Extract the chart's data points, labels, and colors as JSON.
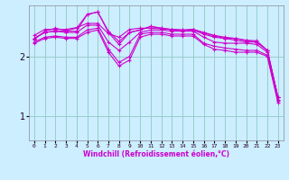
{
  "xlabel": "Windchill (Refroidissement éolien,°C)",
  "bg_color": "#cceeff",
  "grid_color": "#99cccc",
  "line_color": "#cc00cc",
  "xlim": [
    -0.5,
    23.5
  ],
  "ylim": [
    0.6,
    2.85
  ],
  "yticks": [
    1,
    2
  ],
  "xticks": [
    0,
    1,
    2,
    3,
    4,
    5,
    6,
    7,
    8,
    9,
    10,
    11,
    12,
    13,
    14,
    15,
    16,
    17,
    18,
    19,
    20,
    21,
    22,
    23
  ],
  "series": [
    {
      "x": [
        0,
        1,
        2,
        3,
        4,
        5,
        6,
        7,
        8,
        9,
        10,
        11,
        12,
        13,
        14,
        15,
        16,
        17,
        18,
        19,
        20,
        21,
        22,
        23
      ],
      "y": [
        2.35,
        2.45,
        2.45,
        2.45,
        2.48,
        2.55,
        2.55,
        2.38,
        2.32,
        2.45,
        2.47,
        2.47,
        2.46,
        2.45,
        2.44,
        2.44,
        2.37,
        2.32,
        2.3,
        2.27,
        2.24,
        2.24,
        2.1,
        1.32
      ]
    },
    {
      "x": [
        0,
        1,
        2,
        3,
        4,
        5,
        6,
        7,
        8,
        9,
        10,
        11,
        12,
        13,
        14,
        15,
        16,
        17,
        18,
        19,
        20,
        21,
        22,
        23
      ],
      "y": [
        2.28,
        2.42,
        2.47,
        2.43,
        2.47,
        2.7,
        2.74,
        2.42,
        2.25,
        2.4,
        2.44,
        2.5,
        2.47,
        2.45,
        2.44,
        2.45,
        2.4,
        2.35,
        2.32,
        2.3,
        2.27,
        2.26,
        2.1,
        1.32
      ]
    },
    {
      "x": [
        0,
        1,
        2,
        3,
        4,
        5,
        6,
        7,
        8,
        9,
        10,
        11,
        12,
        13,
        14,
        15,
        16,
        17,
        18,
        19,
        20,
        21,
        22,
        23
      ],
      "y": [
        2.3,
        2.4,
        2.42,
        2.42,
        2.42,
        2.7,
        2.74,
        2.4,
        2.2,
        2.4,
        2.44,
        2.5,
        2.47,
        2.44,
        2.43,
        2.45,
        2.39,
        2.34,
        2.3,
        2.3,
        2.26,
        2.24,
        2.1,
        1.32
      ]
    },
    {
      "x": [
        0,
        1,
        2,
        3,
        4,
        5,
        6,
        7,
        8,
        9,
        10,
        11,
        12,
        13,
        14,
        15,
        16,
        17,
        18,
        19,
        20,
        21,
        22,
        23
      ],
      "y": [
        2.3,
        2.4,
        2.42,
        2.4,
        2.4,
        2.52,
        2.52,
        2.24,
        2.1,
        2.24,
        2.4,
        2.44,
        2.44,
        2.42,
        2.42,
        2.42,
        2.32,
        2.24,
        2.22,
        2.22,
        2.22,
        2.2,
        2.07,
        1.28
      ]
    },
    {
      "x": [
        0,
        1,
        2,
        3,
        4,
        5,
        6,
        7,
        8,
        9,
        10,
        11,
        12,
        13,
        14,
        15,
        16,
        17,
        18,
        19,
        20,
        21,
        22,
        23
      ],
      "y": [
        2.24,
        2.32,
        2.34,
        2.32,
        2.32,
        2.44,
        2.47,
        2.12,
        1.9,
        2.0,
        2.37,
        2.4,
        2.4,
        2.37,
        2.37,
        2.37,
        2.22,
        2.17,
        2.14,
        2.12,
        2.1,
        2.1,
        2.02,
        1.26
      ]
    },
    {
      "x": [
        0,
        1,
        2,
        3,
        4,
        5,
        6,
        7,
        8,
        9,
        10,
        11,
        12,
        13,
        14,
        15,
        16,
        17,
        18,
        19,
        20,
        21,
        22,
        23
      ],
      "y": [
        2.22,
        2.3,
        2.32,
        2.3,
        2.3,
        2.4,
        2.44,
        2.07,
        1.84,
        1.94,
        2.32,
        2.37,
        2.37,
        2.34,
        2.34,
        2.34,
        2.2,
        2.12,
        2.1,
        2.07,
        2.07,
        2.07,
        2.0,
        1.23
      ]
    }
  ]
}
